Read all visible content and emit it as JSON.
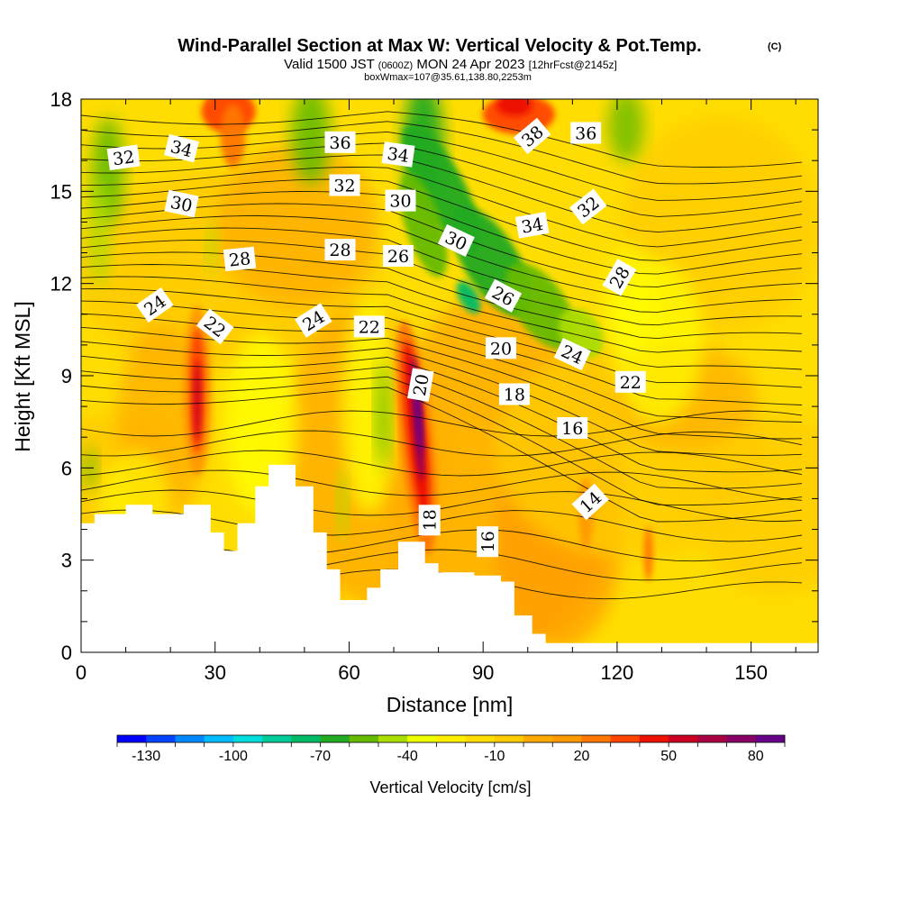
{
  "chart_data": {
    "type": "heatmap",
    "title": "Wind-Parallel Section at Max W: Vertical Velocity & Pot.Temp.",
    "title_suffix": "(C)",
    "subtitle": {
      "valid": "Valid 1500 JST",
      "utc": "(0600Z)",
      "date": "MON 24 Apr 2023",
      "fcst": "[12hrFcst@2145z]"
    },
    "box_note": "boxWmax=107@35.61,138.80,2253m",
    "xlabel": "Distance [nm]",
    "ylabel": "Height [Kft MSL]",
    "xlim": [
      0,
      165
    ],
    "ylim": [
      0,
      18
    ],
    "x_ticks": [
      0,
      30,
      60,
      90,
      120,
      150
    ],
    "y_ticks": [
      0,
      3,
      6,
      9,
      12,
      15,
      18
    ],
    "colorbar": {
      "label": "Vertical Velocity [cm/s]",
      "tick_labels": [
        -130,
        -100,
        -70,
        -40,
        -10,
        20,
        50,
        80
      ],
      "colors": [
        "#0000ff",
        "#0044ff",
        "#0088ff",
        "#00bbff",
        "#00dddd",
        "#00cc99",
        "#00bb66",
        "#22aa22",
        "#66bb00",
        "#aadd00",
        "#eeff00",
        "#ffee00",
        "#ffdd00",
        "#ffcc00",
        "#ffaa00",
        "#ff9900",
        "#ff7700",
        "#ff4400",
        "#ee1100",
        "#cc0022",
        "#aa0044",
        "#880066",
        "#660088"
      ]
    },
    "terrain_kft": [
      [
        0,
        4.2
      ],
      [
        3,
        4.2
      ],
      [
        3,
        4.5
      ],
      [
        10,
        4.5
      ],
      [
        10,
        4.8
      ],
      [
        16,
        4.8
      ],
      [
        16,
        4.5
      ],
      [
        23,
        4.5
      ],
      [
        23,
        4.8
      ],
      [
        29,
        4.8
      ],
      [
        29,
        3.9
      ],
      [
        32,
        3.9
      ],
      [
        32,
        3.3
      ],
      [
        35,
        3.3
      ],
      [
        35,
        4.2
      ],
      [
        39,
        4.2
      ],
      [
        39,
        5.4
      ],
      [
        42,
        5.4
      ],
      [
        42,
        6.1
      ],
      [
        48,
        6.1
      ],
      [
        48,
        5.4
      ],
      [
        52,
        5.4
      ],
      [
        52,
        3.9
      ],
      [
        55,
        3.9
      ],
      [
        55,
        2.7
      ],
      [
        58,
        2.7
      ],
      [
        58,
        1.7
      ],
      [
        64,
        1.7
      ],
      [
        64,
        2.1
      ],
      [
        67,
        2.1
      ],
      [
        67,
        2.7
      ],
      [
        71,
        2.7
      ],
      [
        71,
        3.6
      ],
      [
        77,
        3.6
      ],
      [
        77,
        2.9
      ],
      [
        80,
        2.9
      ],
      [
        80,
        2.6
      ],
      [
        84,
        2.6
      ],
      [
        84,
        2.6
      ],
      [
        88,
        2.6
      ],
      [
        88,
        2.5
      ],
      [
        94,
        2.5
      ],
      [
        94,
        2.3
      ],
      [
        97,
        2.3
      ],
      [
        97,
        1.2
      ],
      [
        101,
        1.2
      ],
      [
        101,
        0.6
      ],
      [
        104,
        0.6
      ],
      [
        104,
        0.3
      ],
      [
        165,
        0.3
      ]
    ],
    "w_features": [
      {
        "kind": "updraft",
        "x": 26,
        "y": 8.5,
        "w_cms": 75
      },
      {
        "kind": "updraft",
        "x": 75,
        "y": 7.6,
        "w_cms": 107
      },
      {
        "kind": "updraft",
        "x": 33,
        "y": 17.5,
        "w_cms": 50
      },
      {
        "kind": "updraft",
        "x": 97,
        "y": 17.5,
        "w_cms": 50
      },
      {
        "kind": "downdraft",
        "x": 72,
        "y": 16.5,
        "w_cms": -40
      },
      {
        "kind": "downdraft",
        "x": 96,
        "y": 12.5,
        "w_cms": -45
      },
      {
        "kind": "downdraft",
        "x": 68,
        "y": 8.0,
        "w_cms": -30
      },
      {
        "kind": "downdraft",
        "x": 5,
        "y": 16.0,
        "w_cms": -25
      }
    ],
    "theta_contours_c": [
      14,
      16,
      18,
      20,
      22,
      24,
      26,
      28,
      30,
      32,
      34,
      36,
      38
    ],
    "contour_labels": [
      {
        "text": "32",
        "x": 9.5,
        "y": 16.1,
        "angle": -8
      },
      {
        "text": "34",
        "x": 22.5,
        "y": 16.4,
        "angle": 14
      },
      {
        "text": "30",
        "x": 22.5,
        "y": 14.6,
        "angle": 12
      },
      {
        "text": "28",
        "x": 35.5,
        "y": 12.8,
        "angle": -6
      },
      {
        "text": "24",
        "x": 16.5,
        "y": 11.3,
        "angle": -35
      },
      {
        "text": "22",
        "x": 30,
        "y": 10.6,
        "angle": 38
      },
      {
        "text": "24",
        "x": 52,
        "y": 10.8,
        "angle": -32
      },
      {
        "text": "22",
        "x": 64.5,
        "y": 10.6,
        "angle": 0
      },
      {
        "text": "36",
        "x": 58,
        "y": 16.6,
        "angle": 0
      },
      {
        "text": "32",
        "x": 59,
        "y": 15.2,
        "angle": 0
      },
      {
        "text": "28",
        "x": 58,
        "y": 13.1,
        "angle": 0
      },
      {
        "text": "34",
        "x": 71,
        "y": 16.2,
        "angle": 8
      },
      {
        "text": "30",
        "x": 71.5,
        "y": 14.7,
        "angle": 0
      },
      {
        "text": "26",
        "x": 71,
        "y": 12.9,
        "angle": 0
      },
      {
        "text": "30",
        "x": 84,
        "y": 13.4,
        "angle": 25
      },
      {
        "text": "38",
        "x": 101,
        "y": 16.8,
        "angle": -40
      },
      {
        "text": "36",
        "x": 113,
        "y": 16.9,
        "angle": 0
      },
      {
        "text": "34",
        "x": 101,
        "y": 13.9,
        "angle": -10
      },
      {
        "text": "32",
        "x": 113.5,
        "y": 14.5,
        "angle": -38
      },
      {
        "text": "26",
        "x": 94.5,
        "y": 11.6,
        "angle": 28
      },
      {
        "text": "28",
        "x": 120.5,
        "y": 12.2,
        "angle": -60
      },
      {
        "text": "20",
        "x": 94,
        "y": 9.9,
        "angle": 0
      },
      {
        "text": "24",
        "x": 110,
        "y": 9.7,
        "angle": 25
      },
      {
        "text": "22",
        "x": 123,
        "y": 8.8,
        "angle": 0
      },
      {
        "text": "20",
        "x": 76,
        "y": 8.7,
        "angle": -80
      },
      {
        "text": "18",
        "x": 97,
        "y": 8.4,
        "angle": 0
      },
      {
        "text": "16",
        "x": 110,
        "y": 7.3,
        "angle": 0
      },
      {
        "text": "14",
        "x": 114,
        "y": 4.9,
        "angle": -42
      },
      {
        "text": "18",
        "x": 78,
        "y": 4.3,
        "angle": -90
      },
      {
        "text": "16",
        "x": 91,
        "y": 3.6,
        "angle": -90
      }
    ]
  }
}
